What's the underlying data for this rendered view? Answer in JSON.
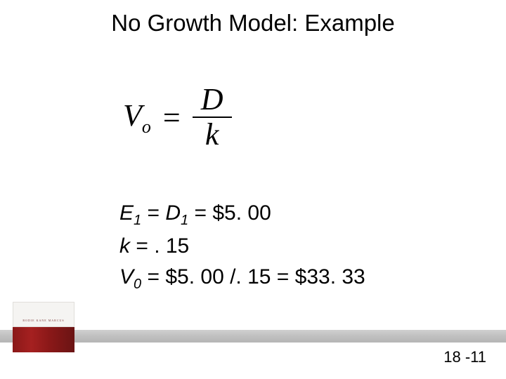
{
  "title": "No Growth Model: Example",
  "formula": {
    "v_var": "V",
    "v_sub": "o",
    "equals": "=",
    "numerator": "D",
    "denominator": "k"
  },
  "lines": {
    "l1": {
      "e_var": "E",
      "e_sub": "1",
      "eq1": " = ",
      "d_var": "D",
      "d_sub": "1",
      "eq2": " = ",
      "val": "$5. 00"
    },
    "l2": {
      "k_var": "k",
      "eq": " = ",
      "val": ". 15"
    },
    "l3": {
      "v_var": "V",
      "v_sub": "0",
      "eq": " = ",
      "expr": "$5. 00 /. 15 = $33. 33"
    }
  },
  "logo_text": "BODIE  KANE  MARCUS",
  "page_number": "18 -11",
  "colors": {
    "text": "#000000",
    "bar_gray": "#c0c0c0",
    "logo_red": "#8a1818",
    "logo_cream": "#f5f4f2"
  }
}
